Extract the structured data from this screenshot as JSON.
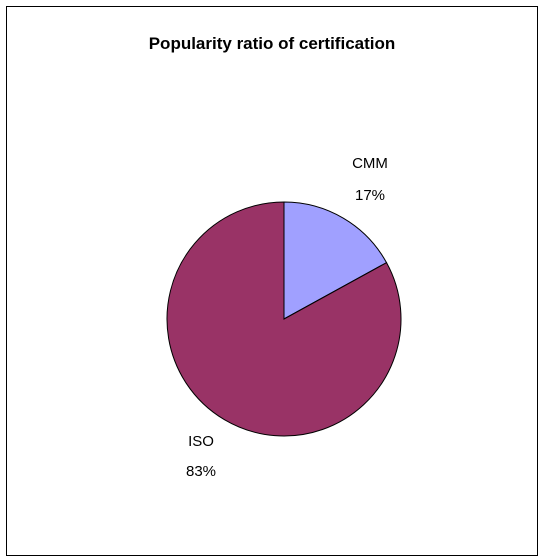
{
  "chart_data": {
    "type": "pie",
    "title": "Popularity ratio of certification",
    "slices": [
      {
        "label": "CMM",
        "percent_label": "17%",
        "value": 17,
        "color": "#a0a0ff"
      },
      {
        "label": "ISO",
        "percent_label": "83%",
        "value": 83,
        "color": "#993366"
      }
    ],
    "legend": "none",
    "start_angle_deg": 0,
    "direction": "clockwise"
  }
}
